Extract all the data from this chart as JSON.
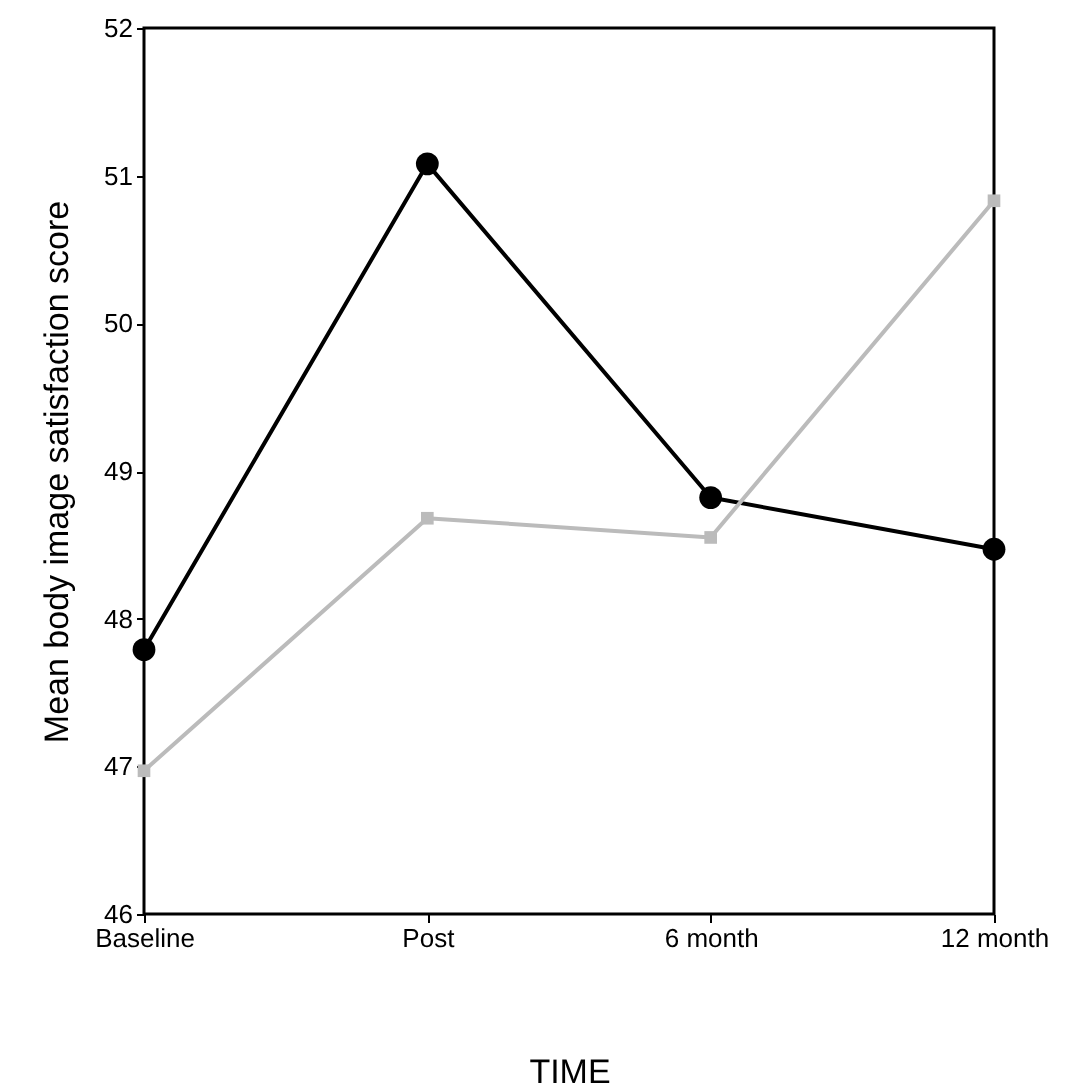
{
  "chart_data": {
    "type": "line",
    "xlabel": "TIME",
    "ylabel": "Mean body image satisfaction score",
    "categories": [
      "Baseline",
      "Post",
      "6 month",
      "12 month"
    ],
    "ylim": [
      46,
      52
    ],
    "yticks": [
      46,
      47,
      48,
      49,
      50,
      51,
      52
    ],
    "series": [
      {
        "color": "#000000",
        "marker": "circle",
        "values": [
          47.79,
          51.08,
          48.82,
          48.47
        ]
      },
      {
        "color": "#bbbbbb",
        "marker": "square",
        "values": [
          46.97,
          48.68,
          48.55,
          50.83
        ]
      }
    ]
  }
}
